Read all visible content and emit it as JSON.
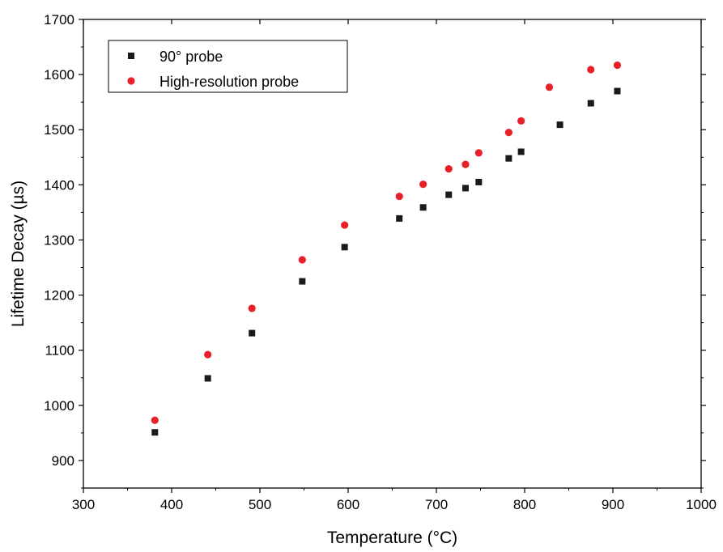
{
  "chart_data": {
    "type": "scatter",
    "title": "",
    "xlabel": "Temperature (°C)",
    "ylabel": "Lifetime Decay (µs)",
    "xlim": [
      300,
      1000
    ],
    "ylim": [
      850,
      1700
    ],
    "xticks": [
      300,
      400,
      500,
      600,
      700,
      800,
      900,
      1000
    ],
    "yticks": [
      900,
      1000,
      1100,
      1200,
      1300,
      1400,
      1500,
      1600,
      1700
    ],
    "grid": false,
    "legend_position": "top-left",
    "series": [
      {
        "name": "90° probe",
        "marker": "square",
        "color": "#1a1a1a",
        "x": [
          381,
          441,
          491,
          548,
          596,
          658,
          685,
          714,
          733,
          748,
          782,
          796,
          840,
          875,
          905
        ],
        "y": [
          951,
          1049,
          1131,
          1225,
          1287,
          1339,
          1359,
          1382,
          1394,
          1405,
          1448,
          1460,
          1509,
          1548,
          1570
        ]
      },
      {
        "name": "High-resolution probe",
        "marker": "circle",
        "color": "#e8202a",
        "x": [
          381,
          441,
          491,
          548,
          596,
          658,
          685,
          714,
          733,
          748,
          782,
          796,
          828,
          875,
          905
        ],
        "y": [
          973,
          1092,
          1176,
          1264,
          1327,
          1379,
          1401,
          1429,
          1437,
          1458,
          1495,
          1516,
          1577,
          1609,
          1617
        ]
      }
    ]
  }
}
